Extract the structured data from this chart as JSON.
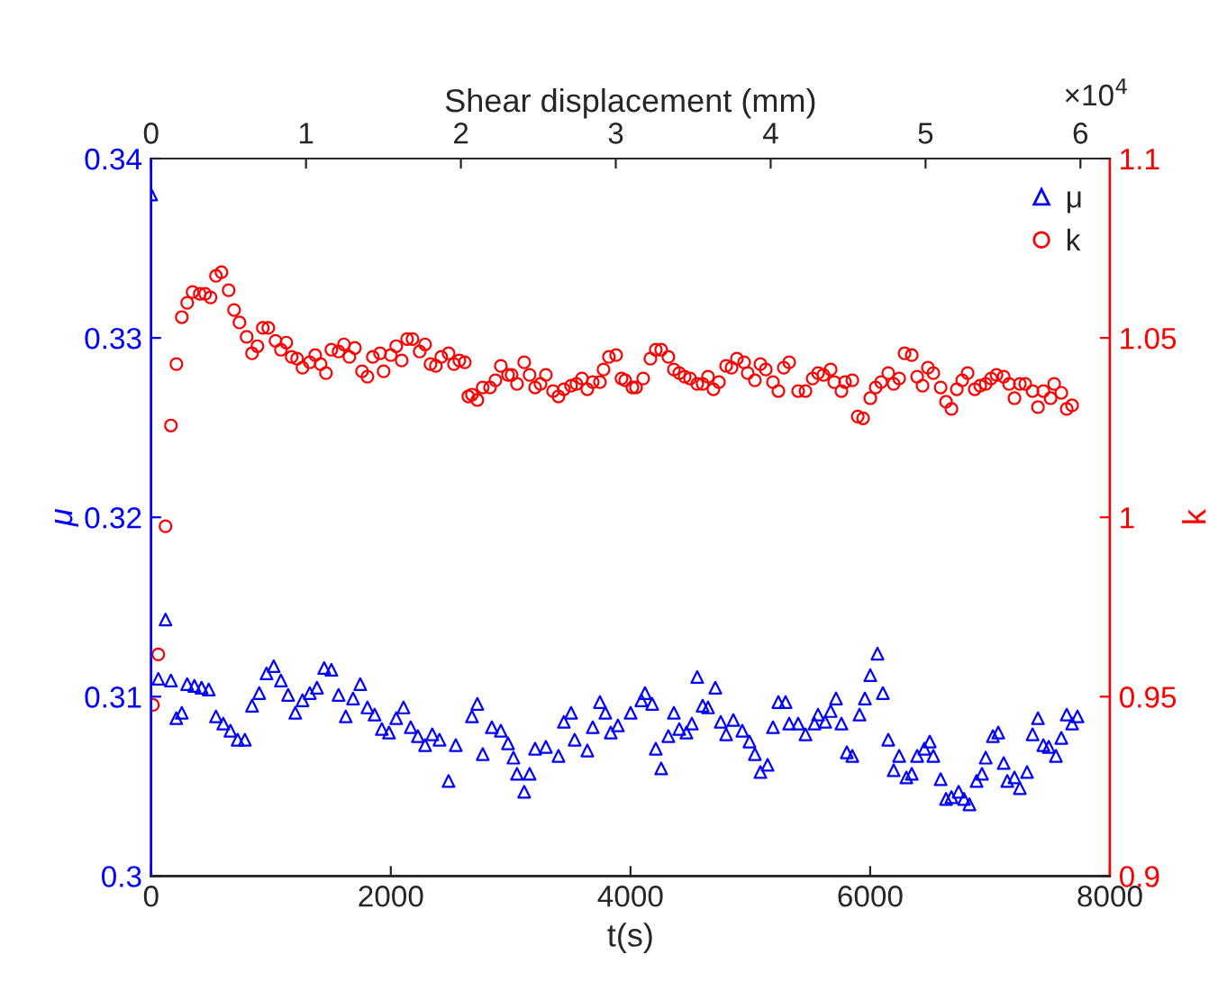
{
  "chart_data": {
    "type": "scatter",
    "xlabel": "t(s)",
    "ylabel": "μ",
    "y2label": "k",
    "x2label": "Shear displacement (mm)",
    "xlim": [
      0,
      8000
    ],
    "xticks": [
      0,
      2000,
      4000,
      6000,
      8000
    ],
    "ylim": [
      0.3,
      0.34
    ],
    "yticks": [
      0.3,
      0.31,
      0.32,
      0.33,
      0.34
    ],
    "y2lim": [
      0.9,
      1.1
    ],
    "y2ticks": [
      0.9,
      0.95,
      1,
      1.05,
      1.1
    ],
    "x2lim": [
      0,
      6.19
    ],
    "x2ticks": [
      0,
      1,
      2,
      3,
      4,
      5,
      6
    ],
    "annotations": [
      "×10$^{4}$"
    ],
    "legend": "top right",
    "grid": false,
    "series": [
      {
        "name": "μ",
        "color": "#0000ff",
        "marker": "triangle",
        "x": [
          0,
          60,
          120,
          165,
          210,
          256,
          301,
          361,
          421,
          481,
          541,
          602,
          662,
          722,
          782,
          842,
          902,
          963,
          1023,
          1083,
          1143,
          1203,
          1263,
          1324,
          1384,
          1444,
          1504,
          1564,
          1624,
          1685,
          1745,
          1805,
          1865,
          1925,
          1985,
          2045,
          2106,
          2166,
          2226,
          2286,
          2346,
          2406,
          2482,
          2542,
          2677,
          2722,
          2767,
          2843,
          2918,
          2978,
          3023,
          3053,
          3113,
          3158,
          3204,
          3294,
          3399,
          3444,
          3504,
          3534,
          3640,
          3685,
          3745,
          3790,
          3835,
          3895,
          4001,
          4091,
          4121,
          4181,
          4211,
          4256,
          4316,
          4362,
          4407,
          4467,
          4512,
          4557,
          4602,
          4647,
          4708,
          4753,
          4798,
          4858,
          4933,
          4993,
          5038,
          5084,
          5144,
          5189,
          5234,
          5294,
          5324,
          5399,
          5460,
          5535,
          5565,
          5625,
          5670,
          5715,
          5760,
          5805,
          5851,
          5911,
          5956,
          6001,
          6061,
          6106,
          6151,
          6196,
          6242,
          6302,
          6347,
          6392,
          6452,
          6497,
          6527,
          6588,
          6633,
          6678,
          6738,
          6783,
          6828,
          6888,
          6933,
          6964,
          7024,
          7069,
          7114,
          7144,
          7204,
          7249,
          7309,
          7355,
          7400,
          7445,
          7490,
          7550,
          7595,
          7640,
          7685,
          7730
        ],
        "values": [
          0.338,
          0.311,
          0.3143,
          0.3109,
          0.3088,
          0.3091,
          0.3107,
          0.3106,
          0.3105,
          0.3104,
          0.3089,
          0.3085,
          0.3081,
          0.3076,
          0.3076,
          0.3095,
          0.3102,
          0.3113,
          0.3117,
          0.3109,
          0.3101,
          0.3091,
          0.3098,
          0.3102,
          0.3105,
          0.3116,
          0.3115,
          0.3101,
          0.3089,
          0.3099,
          0.3107,
          0.3094,
          0.309,
          0.3082,
          0.308,
          0.3088,
          0.3094,
          0.3083,
          0.3078,
          0.3073,
          0.3079,
          0.3076,
          0.3053,
          0.3073,
          0.3089,
          0.3096,
          0.3068,
          0.3083,
          0.3081,
          0.3074,
          0.3066,
          0.3057,
          0.3047,
          0.3057,
          0.3071,
          0.3072,
          0.3067,
          0.3086,
          0.3091,
          0.3076,
          0.307,
          0.3083,
          0.3097,
          0.3091,
          0.308,
          0.3084,
          0.3091,
          0.3098,
          0.3102,
          0.3096,
          0.3071,
          0.306,
          0.3078,
          0.3091,
          0.3082,
          0.308,
          0.3085,
          0.3111,
          0.3095,
          0.3094,
          0.3105,
          0.3086,
          0.3079,
          0.3087,
          0.3081,
          0.3075,
          0.3068,
          0.3058,
          0.3062,
          0.3083,
          0.3097,
          0.3097,
          0.3085,
          0.3085,
          0.3079,
          0.3085,
          0.309,
          0.3086,
          0.3092,
          0.3099,
          0.3085,
          0.3069,
          0.3067,
          0.309,
          0.3099,
          0.3112,
          0.3124,
          0.3102,
          0.3076,
          0.3059,
          0.3067,
          0.3055,
          0.3057,
          0.3067,
          0.3071,
          0.3075,
          0.3067,
          0.3054,
          0.3043,
          0.3044,
          0.3047,
          0.3043,
          0.304,
          0.3053,
          0.3057,
          0.3066,
          0.3078,
          0.308,
          0.3063,
          0.3053,
          0.3055,
          0.3049,
          0.3058,
          0.3079,
          0.3088,
          0.3073,
          0.3072,
          0.3067,
          0.3077,
          0.309,
          0.3085,
          0.3089
        ]
      },
      {
        "name": "k",
        "color": "#ff0000",
        "marker": "circle",
        "axis": "y2",
        "x": [
          15,
          60,
          120,
          165,
          211,
          256,
          301,
          346,
          406,
          451,
          496,
          541,
          587,
          647,
          692,
          737,
          797,
          842,
          887,
          932,
          978,
          1038,
          1083,
          1128,
          1173,
          1218,
          1263,
          1324,
          1369,
          1414,
          1459,
          1504,
          1564,
          1609,
          1654,
          1700,
          1760,
          1805,
          1850,
          1910,
          1940,
          2000,
          2045,
          2091,
          2136,
          2181,
          2241,
          2286,
          2331,
          2376,
          2421,
          2482,
          2527,
          2572,
          2617,
          2647,
          2677,
          2722,
          2767,
          2828,
          2873,
          2918,
          2978,
          3008,
          3053,
          3113,
          3158,
          3204,
          3249,
          3294,
          3354,
          3399,
          3444,
          3504,
          3549,
          3595,
          3640,
          3685,
          3745,
          3775,
          3820,
          3880,
          3925,
          3956,
          4016,
          4046,
          4106,
          4166,
          4211,
          4256,
          4316,
          4362,
          4407,
          4452,
          4497,
          4557,
          4602,
          4647,
          4692,
          4738,
          4798,
          4843,
          4888,
          4948,
          4978,
          5038,
          5084,
          5129,
          5189,
          5234,
          5279,
          5324,
          5399,
          5460,
          5520,
          5565,
          5610,
          5670,
          5700,
          5760,
          5790,
          5851,
          5896,
          5941,
          6001,
          6046,
          6091,
          6151,
          6196,
          6242,
          6287,
          6347,
          6392,
          6437,
          6482,
          6527,
          6588,
          6633,
          6678,
          6723,
          6768,
          6813,
          6873,
          6918,
          6964,
          7009,
          7054,
          7114,
          7159,
          7204,
          7249,
          7294,
          7355,
          7400,
          7445,
          7505,
          7535,
          7595,
          7640,
          7685
        ],
        "values": [
          0.9477,
          0.9618,
          0.9975,
          1.0256,
          1.0427,
          1.0558,
          1.0598,
          1.0628,
          1.0623,
          1.0623,
          1.0613,
          1.0673,
          1.0683,
          1.0633,
          1.0578,
          1.0543,
          1.0503,
          1.0457,
          1.0477,
          1.0528,
          1.0528,
          1.0492,
          1.0467,
          1.0487,
          1.0447,
          1.0442,
          1.0417,
          1.0432,
          1.0452,
          1.0427,
          1.0402,
          1.0467,
          1.0462,
          1.0482,
          1.0447,
          1.0472,
          1.0407,
          1.0392,
          1.0447,
          1.0457,
          1.0407,
          1.0452,
          1.0477,
          1.0437,
          1.0497,
          1.0497,
          1.0462,
          1.0482,
          1.0427,
          1.0422,
          1.0447,
          1.0457,
          1.0427,
          1.0437,
          1.0432,
          1.0337,
          1.0342,
          1.0327,
          1.0362,
          1.0362,
          1.0382,
          1.0422,
          1.0397,
          1.0397,
          1.0372,
          1.0432,
          1.0397,
          1.0362,
          1.0372,
          1.0397,
          1.0352,
          1.0337,
          1.0357,
          1.0367,
          1.0372,
          1.0387,
          1.0357,
          1.0377,
          1.0377,
          1.0412,
          1.0447,
          1.0452,
          1.0387,
          1.0382,
          1.0362,
          1.0362,
          1.0387,
          1.0442,
          1.0467,
          1.0467,
          1.0447,
          1.0412,
          1.0402,
          1.0392,
          1.0387,
          1.0372,
          1.0372,
          1.0392,
          1.0357,
          1.0377,
          1.0422,
          1.0417,
          1.0442,
          1.0432,
          1.0402,
          1.0382,
          1.0427,
          1.0412,
          1.0377,
          1.0352,
          1.0417,
          1.0432,
          1.0352,
          1.0352,
          1.0387,
          1.0402,
          1.0397,
          1.0412,
          1.0377,
          1.0352,
          1.0377,
          1.0382,
          1.0281,
          1.0276,
          1.0332,
          1.0362,
          1.0377,
          1.0402,
          1.0372,
          1.0387,
          1.0457,
          1.0452,
          1.0392,
          1.0367,
          1.0417,
          1.0402,
          1.0362,
          1.0322,
          1.0302,
          1.0357,
          1.0382,
          1.0402,
          1.0357,
          1.0367,
          1.0372,
          1.0387,
          1.0397,
          1.0392,
          1.0372,
          1.0332,
          1.0372,
          1.0372,
          1.0352,
          1.0307,
          1.0352,
          1.0332,
          1.0372,
          1.0347,
          1.0302,
          1.0312
        ]
      }
    ]
  }
}
